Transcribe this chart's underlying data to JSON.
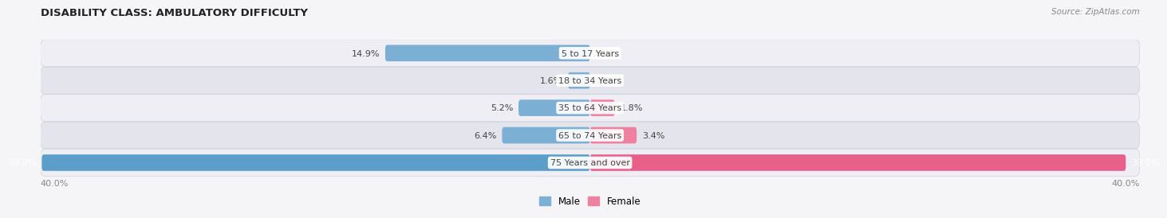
{
  "title": "DISABILITY CLASS: AMBULATORY DIFFICULTY",
  "source": "Source: ZipAtlas.com",
  "categories": [
    "5 to 17 Years",
    "18 to 34 Years",
    "35 to 64 Years",
    "65 to 74 Years",
    "75 Years and over"
  ],
  "male_values": [
    14.9,
    1.6,
    5.2,
    6.4,
    39.9
  ],
  "female_values": [
    0.0,
    0.0,
    1.8,
    3.4,
    39.0
  ],
  "male_color": "#7bafd4",
  "female_color": "#f080a0",
  "last_male_color": "#5b9ec9",
  "last_female_color": "#e8608a",
  "row_bg_light": "#eeeeF4",
  "row_bg_dark": "#e4e4ec",
  "row_border_color": "#d0d0dc",
  "max_value": 40.0,
  "label_color": "#444444",
  "title_color": "#222222",
  "axis_label_color": "#888888",
  "source_color": "#888888",
  "fig_bg": "#f5f5f8"
}
